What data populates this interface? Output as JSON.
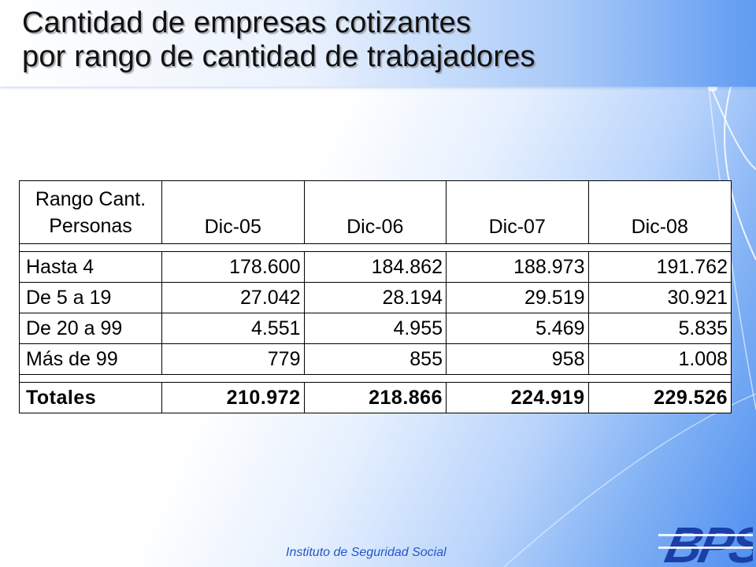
{
  "slide": {
    "title_line1": "Cantidad de empresas cotizantes",
    "title_line2": "por rango de cantidad de trabajadores",
    "footer": "Instituto de Seguridad Social",
    "logo_text": "BPS"
  },
  "table": {
    "header": {
      "label_line1": "Rango Cant.",
      "label_line2": "Personas",
      "columns": [
        "Dic-05",
        "Dic-06",
        "Dic-07",
        "Dic-08"
      ]
    },
    "rows": [
      {
        "label": "Hasta 4",
        "values": [
          "178.600",
          "184.862",
          "188.973",
          "191.762"
        ]
      },
      {
        "label": "De 5 a 19",
        "values": [
          "27.042",
          "28.194",
          "29.519",
          "30.921"
        ]
      },
      {
        "label": "De 20 a 99",
        "values": [
          "4.551",
          "4.955",
          "5.469",
          "5.835"
        ]
      },
      {
        "label": "Más de 99",
        "values": [
          "779",
          "855",
          "958",
          "1.008"
        ]
      }
    ],
    "totals": {
      "label": "Totales",
      "values": [
        "210.972",
        "218.866",
        "224.919",
        "229.526"
      ]
    }
  },
  "colors": {
    "footer_text": "#2456c8",
    "logo_blue": "#1a3fa8",
    "background_accent": "#4f8ff0"
  }
}
